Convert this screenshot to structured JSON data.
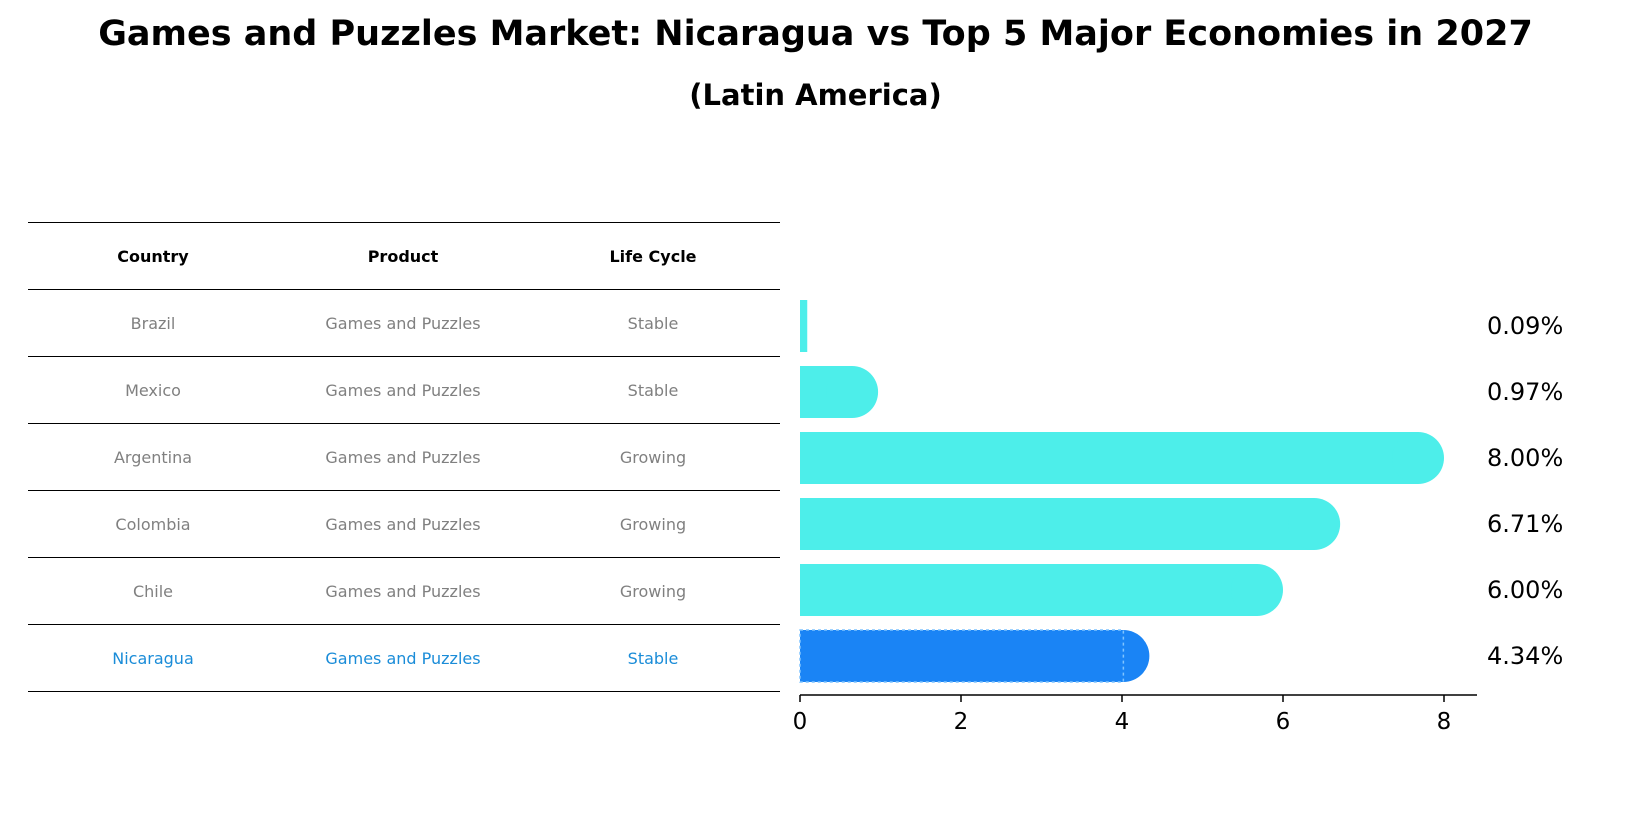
{
  "title": "Games and Puzzles Market: Nicaragua vs Top 5 Major Economies in 2027",
  "subtitle": "(Latin America)",
  "table": {
    "headers": [
      "Country",
      "Product",
      "Life Cycle"
    ],
    "rows": [
      {
        "country": "Brazil",
        "product": "Games and Puzzles",
        "life_cycle": "Stable"
      },
      {
        "country": "Mexico",
        "product": "Games and Puzzles",
        "life_cycle": "Stable"
      },
      {
        "country": "Argentina",
        "product": "Games and Puzzles",
        "life_cycle": "Growing"
      },
      {
        "country": "Colombia",
        "product": "Games and Puzzles",
        "life_cycle": "Growing"
      },
      {
        "country": "Chile",
        "product": "Games and Puzzles",
        "life_cycle": "Growing"
      },
      {
        "country": "Nicaragua",
        "product": "Games and Puzzles",
        "life_cycle": "Stable"
      }
    ]
  },
  "colors": {
    "bar": "#4deeea",
    "highlight_bar": "#1a84f5",
    "highlight_text": "#1a8cd8",
    "muted_text": "#808080"
  },
  "chart_data": {
    "type": "bar",
    "orientation": "horizontal",
    "categories": [
      "Brazil",
      "Mexico",
      "Argentina",
      "Colombia",
      "Chile",
      "Nicaragua"
    ],
    "values": [
      0.09,
      0.97,
      8.0,
      6.71,
      6.0,
      4.34
    ],
    "value_labels": [
      "0.09%",
      "0.97%",
      "8.00%",
      "6.71%",
      "6.00%",
      "4.34%"
    ],
    "highlight": "Nicaragua",
    "xlim": [
      0,
      8.4
    ],
    "xticks": [
      0,
      2,
      4,
      6,
      8
    ],
    "xlabel": "",
    "ylabel": ""
  }
}
